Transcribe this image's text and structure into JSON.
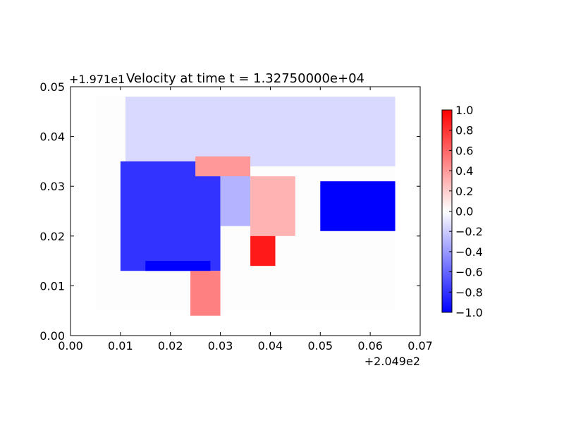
{
  "chart_data": [
    {
      "type": "heatmap",
      "title": "Velocity at time t = 1.32750000e+04",
      "xlabel": "",
      "ylabel": "",
      "x_offset_label": "+2.049e2",
      "y_offset_label": "+1.971e1",
      "xlim": [
        0.0,
        0.07
      ],
      "ylim": [
        0.0,
        0.05
      ],
      "x_ticks": [
        "0.00",
        "0.01",
        "0.02",
        "0.03",
        "0.04",
        "0.05",
        "0.06",
        "0.07"
      ],
      "y_ticks": [
        "0.00",
        "0.01",
        "0.02",
        "0.03",
        "0.04",
        "0.05"
      ],
      "grid": false,
      "colormap": "bwr",
      "colorbar": {
        "range": [
          -1.0,
          1.0
        ],
        "ticks": [
          "−1.0",
          "−0.8",
          "−0.6",
          "−0.4",
          "−0.2",
          "0.0",
          "0.2",
          "0.4",
          "0.6",
          "0.8",
          "1.0"
        ],
        "colors": {
          "low": "#0000ff",
          "mid": "#ffffff",
          "high": "#ff0000"
        }
      },
      "data_extent": {
        "x": [
          0.005,
          0.065
        ],
        "y": [
          0.005,
          0.048
        ]
      },
      "regions": [
        {
          "x": [
            0.011,
            0.065
          ],
          "y": [
            0.034,
            0.048
          ],
          "value": -0.15
        },
        {
          "x": [
            0.01,
            0.03
          ],
          "y": [
            0.013,
            0.035
          ],
          "value": -0.8
        },
        {
          "x": [
            0.03,
            0.036
          ],
          "y": [
            0.022,
            0.033
          ],
          "value": -0.3
        },
        {
          "x": [
            0.036,
            0.045
          ],
          "y": [
            0.02,
            0.032
          ],
          "value": 0.3
        },
        {
          "x": [
            0.025,
            0.036
          ],
          "y": [
            0.032,
            0.036
          ],
          "value": 0.4
        },
        {
          "x": [
            0.05,
            0.065
          ],
          "y": [
            0.021,
            0.031
          ],
          "value": -1.0
        },
        {
          "x": [
            0.036,
            0.041
          ],
          "y": [
            0.014,
            0.02
          ],
          "value": 0.9
        },
        {
          "x": [
            0.024,
            0.03
          ],
          "y": [
            0.004,
            0.013
          ],
          "value": 0.5
        },
        {
          "x": [
            0.015,
            0.028
          ],
          "y": [
            0.013,
            0.015
          ],
          "value": -1.0
        }
      ]
    }
  ]
}
